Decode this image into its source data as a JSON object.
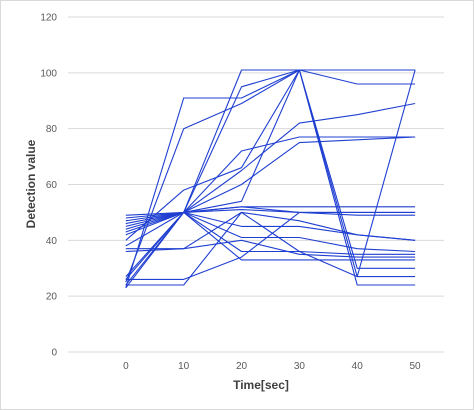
{
  "chart_data": {
    "type": "line",
    "title": "",
    "xlabel": "Time[sec]",
    "ylabel": "Detection value",
    "x": [
      0,
      10,
      20,
      30,
      40,
      50
    ],
    "xticks": [
      "0",
      "10",
      "20",
      "30",
      "40",
      "50"
    ],
    "yticks": [
      "0",
      "20",
      "40",
      "60",
      "80",
      "100",
      "120"
    ],
    "ylim": [
      0,
      120
    ],
    "xlim": [
      -10,
      55
    ],
    "grid": true,
    "legend": "none",
    "color": "#1f3fd1",
    "series": [
      {
        "values": [
          23,
          91,
          91,
          101,
          101,
          101
        ]
      },
      {
        "values": [
          25,
          80,
          89,
          101,
          101,
          101
        ]
      },
      {
        "values": [
          27,
          50,
          95,
          101,
          27,
          101
        ]
      },
      {
        "values": [
          24,
          50,
          101,
          101,
          24,
          24
        ]
      },
      {
        "values": [
          23,
          50,
          54,
          101,
          96,
          96
        ]
      },
      {
        "values": [
          26,
          50,
          72,
          77,
          77,
          77
        ]
      },
      {
        "values": [
          43,
          50,
          65,
          82,
          85,
          89
        ]
      },
      {
        "values": [
          45,
          50,
          60,
          75,
          76,
          77
        ]
      },
      {
        "values": [
          40,
          58,
          66,
          101,
          30,
          30
        ]
      },
      {
        "values": [
          48,
          50,
          52,
          52,
          52,
          52
        ]
      },
      {
        "values": [
          46,
          50,
          51,
          50,
          50,
          50
        ]
      },
      {
        "values": [
          49,
          50,
          52,
          50,
          49,
          49
        ]
      },
      {
        "values": [
          47,
          50,
          45,
          45,
          42,
          40
        ]
      },
      {
        "values": [
          37,
          37,
          50,
          47,
          42,
          40
        ]
      },
      {
        "values": [
          42,
          50,
          41,
          41,
          37,
          36
        ]
      },
      {
        "values": [
          44,
          50,
          36,
          36,
          35,
          35
        ]
      },
      {
        "values": [
          38,
          50,
          33,
          33,
          33,
          33
        ]
      },
      {
        "values": [
          26,
          26,
          34,
          50,
          50,
          50
        ]
      },
      {
        "values": [
          24,
          24,
          50,
          36,
          27,
          27
        ]
      },
      {
        "values": [
          36,
          37,
          40,
          35,
          34,
          34
        ]
      }
    ]
  }
}
